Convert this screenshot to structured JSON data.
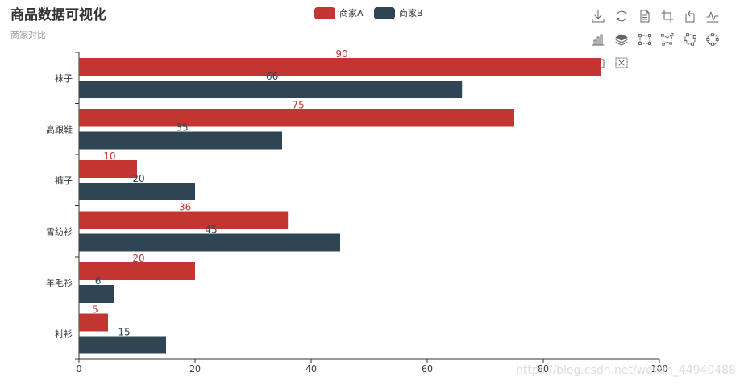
{
  "title": "商品数据可视化",
  "subtitle": "商家对比",
  "watermark": "https://blog.csdn.net/weixin_44940488",
  "colors": {
    "series_a": "#c23531",
    "series_b": "#2f4554",
    "axis": "#333333",
    "toolbox": "#666666"
  },
  "toolbox": [
    {
      "name": "download-icon"
    },
    {
      "name": "refresh-icon"
    },
    {
      "name": "data-view-icon"
    },
    {
      "name": "crop-icon"
    },
    {
      "name": "rotate-icon"
    },
    {
      "name": "line-chart-icon"
    },
    {
      "name": "bar-chart-icon"
    },
    {
      "name": "stack-icon"
    },
    {
      "name": "rect-select-icon"
    },
    {
      "name": "lasso-select-icon"
    },
    {
      "name": "keep-select-icon"
    },
    {
      "name": "clear-select-icon"
    },
    {
      "name": "zoom-icon"
    },
    {
      "name": "zoom-reset-icon"
    }
  ],
  "chart_data": {
    "type": "bar",
    "orientation": "horizontal",
    "categories": [
      "衬衫",
      "羊毛衫",
      "雪纺衫",
      "裤子",
      "高跟鞋",
      "袜子"
    ],
    "series": [
      {
        "name": "商家A",
        "values": [
          5,
          20,
          36,
          10,
          75,
          90
        ]
      },
      {
        "name": "商家B",
        "values": [
          15,
          6,
          45,
          20,
          35,
          66
        ]
      }
    ],
    "xlim": [
      0,
      100
    ],
    "xticks": [
      0,
      20,
      40,
      60,
      80,
      100
    ],
    "legend_position": "top-center",
    "grid": false
  }
}
